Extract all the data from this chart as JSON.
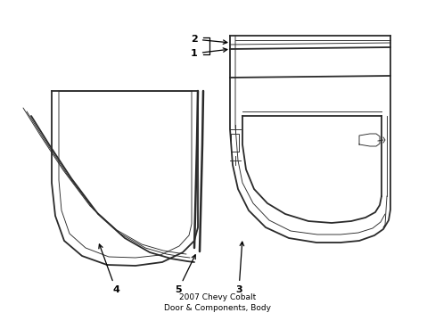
{
  "bg_color": "#ffffff",
  "line_color": "#2a2a2a",
  "lw_main": 1.3,
  "lw_thin": 0.65,
  "lw_thick": 1.8,
  "label_fontsize": 8,
  "label_color": "#000000",
  "title": "2007 Chevy Cobalt\nDoor & Components, Body",
  "title_fontsize": 6.5
}
